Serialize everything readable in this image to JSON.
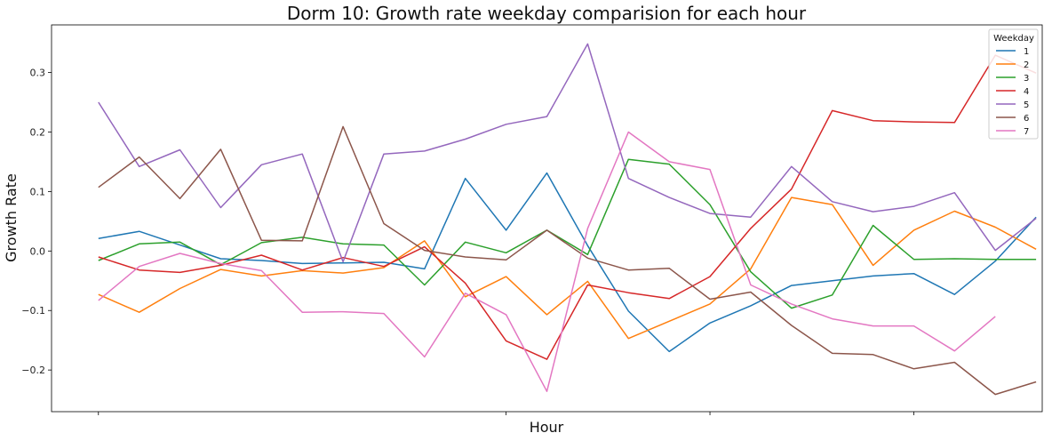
{
  "chart_data": {
    "type": "line",
    "title": "Dorm 10: Growth rate weekday comparision for each hour",
    "xlabel": "Hour",
    "ylabel": "Growth Rate",
    "ylim": [
      -0.27,
      0.38
    ],
    "xlim": [
      -1.15,
      23.15
    ],
    "yticks": [
      -0.2,
      -0.1,
      0.0,
      0.1,
      0.2,
      0.3
    ],
    "ytick_labels": [
      "−0.2",
      "−0.1",
      "0.0",
      "0.1",
      "0.2",
      "0.3"
    ],
    "xticks": [
      0,
      10,
      15,
      20
    ],
    "grid": false,
    "legend": {
      "title": "Weekday",
      "position": "top-right"
    },
    "x": [
      0,
      1,
      2,
      3,
      4,
      5,
      6,
      7,
      8,
      9,
      10,
      11,
      12,
      13,
      14,
      15,
      16,
      17,
      18,
      19,
      20,
      21,
      22,
      23
    ],
    "series": [
      {
        "name": "1",
        "color": "#1f77b4",
        "values": [
          0.021,
          0.033,
          0.01,
          -0.013,
          -0.016,
          -0.021,
          -0.02,
          -0.019,
          -0.03,
          0.122,
          0.035,
          0.131,
          0.009,
          -0.101,
          -0.169,
          -0.121,
          -0.092,
          -0.058,
          -0.05,
          -0.042,
          -0.038,
          -0.073,
          -0.017,
          0.057
        ]
      },
      {
        "name": "2",
        "color": "#ff7f0e",
        "values": [
          -0.073,
          -0.103,
          -0.063,
          -0.031,
          -0.042,
          -0.033,
          -0.037,
          -0.028,
          0.017,
          -0.077,
          -0.043,
          -0.107,
          -0.051,
          -0.147,
          -0.118,
          -0.089,
          -0.03,
          0.09,
          0.078,
          -0.024,
          0.035,
          0.067,
          0.04,
          0.003
        ]
      },
      {
        "name": "3",
        "color": "#2ca02c",
        "values": [
          -0.016,
          0.012,
          0.015,
          -0.023,
          0.014,
          0.023,
          0.012,
          0.01,
          -0.057,
          0.015,
          -0.003,
          0.035,
          -0.006,
          0.154,
          0.146,
          0.078,
          -0.035,
          -0.096,
          -0.074,
          0.043,
          -0.014,
          -0.013,
          -0.014,
          -0.014
        ]
      },
      {
        "name": "4",
        "color": "#d62728",
        "values": [
          -0.01,
          -0.032,
          -0.036,
          -0.024,
          -0.007,
          -0.032,
          -0.011,
          -0.026,
          0.007,
          -0.054,
          -0.151,
          -0.182,
          -0.057,
          -0.07,
          -0.08,
          -0.043,
          0.038,
          0.104,
          0.236,
          0.219,
          0.217,
          0.216,
          0.329,
          0.299
        ]
      },
      {
        "name": "5",
        "color": "#9467bd",
        "values": [
          0.25,
          0.142,
          0.17,
          0.073,
          0.145,
          0.163,
          -0.018,
          0.163,
          0.168,
          0.188,
          0.213,
          0.226,
          0.348,
          0.122,
          0.09,
          0.063,
          0.057,
          0.142,
          0.083,
          0.066,
          0.075,
          0.098,
          0.001,
          0.055
        ]
      },
      {
        "name": "6",
        "color": "#8c564b",
        "values": [
          0.107,
          0.158,
          0.088,
          0.171,
          0.018,
          0.017,
          0.209,
          0.046,
          0.001,
          -0.01,
          -0.015,
          0.035,
          -0.012,
          -0.032,
          -0.029,
          -0.081,
          -0.069,
          -0.125,
          -0.172,
          -0.174,
          -0.198,
          -0.187,
          -0.241,
          -0.22
        ]
      },
      {
        "name": "7",
        "color": "#e377c2",
        "values": [
          -0.083,
          -0.026,
          -0.004,
          -0.021,
          -0.033,
          -0.103,
          -0.102,
          -0.105,
          -0.178,
          -0.071,
          -0.107,
          -0.236,
          0.038,
          0.2,
          0.15,
          0.137,
          -0.057,
          -0.089,
          -0.114,
          -0.126,
          -0.126,
          -0.168,
          -0.11,
          null
        ]
      }
    ]
  }
}
